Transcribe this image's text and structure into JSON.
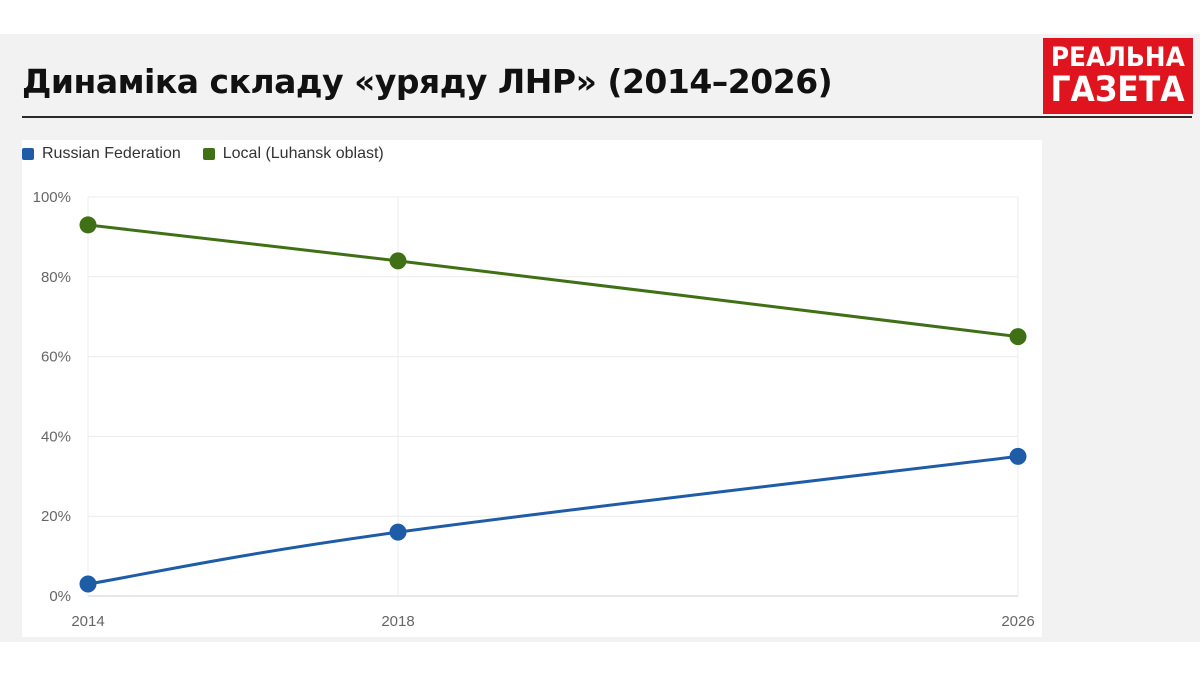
{
  "header": {
    "title": "Динаміка складу «уряду ЛНР» (2014–2026)",
    "logo_line1": "РЕАЛЬНА",
    "logo_line2": "ГАЗЕТА"
  },
  "colors": {
    "brand_red": "#e0141e",
    "russian": "#1f5ca8",
    "local": "#3f7016"
  },
  "chart_data": {
    "type": "line",
    "x": [
      "2014",
      "2018",
      "2026"
    ],
    "y_ticks": [
      "0%",
      "20%",
      "40%",
      "60%",
      "80%",
      "100%"
    ],
    "ylim": [
      0,
      100
    ],
    "legend_position": "top-left",
    "grid": true,
    "series": [
      {
        "name": "Russian Federation",
        "color": "#1f5ca8",
        "values": [
          3,
          16,
          35
        ]
      },
      {
        "name": "Local (Luhansk oblast)",
        "color": "#3f7016",
        "values": [
          93,
          84,
          65
        ]
      }
    ]
  }
}
